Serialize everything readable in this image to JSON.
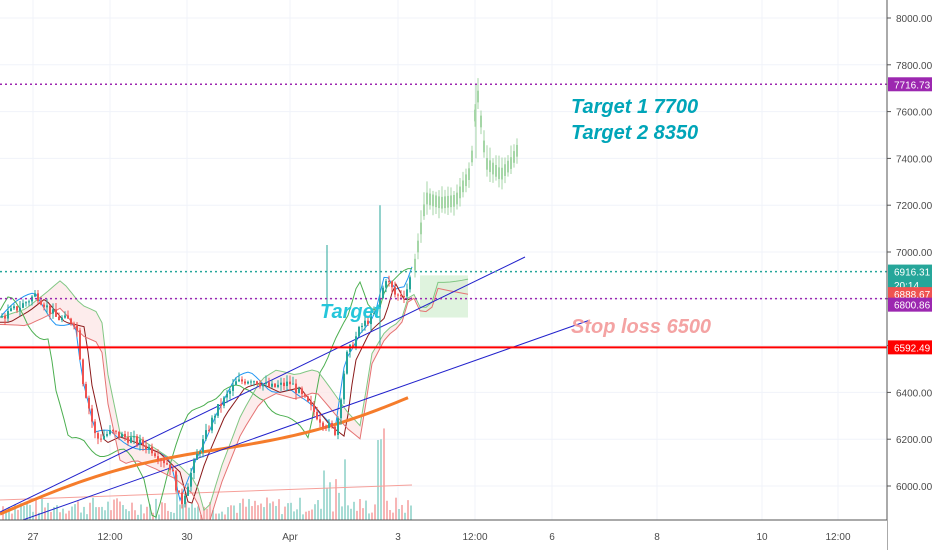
{
  "chart_data": {
    "type": "candlestick",
    "y_axis": {
      "ticks": [
        6000,
        6200,
        6400,
        6600,
        6800,
        7000,
        7200,
        7400,
        7600,
        7800,
        8000
      ],
      "tick_labels": [
        "6000.00",
        "6200.00",
        "6400.00",
        "6600.00",
        "6800.00",
        "7000.00",
        "7200.00",
        "7400.00",
        "7600.00",
        "7800.00",
        "8000.00"
      ],
      "range": [
        5860,
        8060
      ]
    },
    "x_axis": {
      "tick_labels": [
        "27",
        "12:00",
        "30",
        "Apr",
        "3",
        "12:00",
        "6",
        "8",
        "10",
        "12:00"
      ]
    },
    "price_tags": [
      {
        "label": "7716.73",
        "value": 7716.73,
        "color": "#9c27b0"
      },
      {
        "label": "6916.31",
        "value": 6916.31,
        "color": "#26a69a"
      },
      {
        "label": "20:14",
        "value": 6860,
        "color": "#26a69a"
      },
      {
        "label": "6888.67",
        "value": 6820,
        "color": "#ef5350"
      },
      {
        "label": "6800.86",
        "value": 6775,
        "color": "#9c27b0"
      },
      {
        "label": "6592.49",
        "value": 6592.49,
        "color": "#ff0000"
      }
    ],
    "horizontal_lines": [
      {
        "value": 7716.73,
        "style": "dotted",
        "color": "#9c27b0"
      },
      {
        "value": 6800.86,
        "style": "dotted",
        "color": "#9c27b0"
      },
      {
        "value": 6916.31,
        "style": "dotted",
        "color": "#26a69a"
      },
      {
        "value": 6592.49,
        "style": "solid",
        "color": "#ff0000"
      }
    ],
    "annotations": [
      {
        "text": "Target 1  7700",
        "color": "#00a5b8"
      },
      {
        "text": "Target 2  8350",
        "color": "#00a5b8"
      },
      {
        "text": "Target",
        "color": "#26c6da"
      },
      {
        "text": "Stop loss 6500",
        "color": "#f4a3a3"
      }
    ],
    "channel": {
      "color": "#2222cc"
    },
    "moving_average": {
      "color": "#f57c2b"
    },
    "colors": {
      "up": "#26a69a",
      "down": "#ef5350",
      "projection": "#a5d6a7"
    }
  }
}
